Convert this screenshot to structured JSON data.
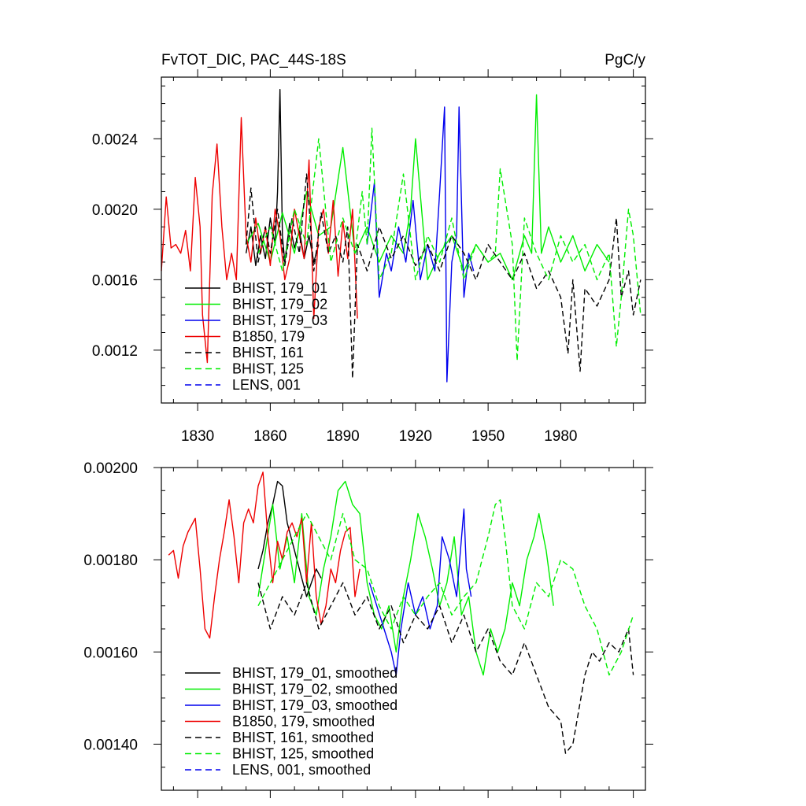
{
  "chart_data": [
    {
      "type": "line",
      "title": "FvTOT_DIC, PAC_44S-18S",
      "units": "PgC/y",
      "xlim": [
        1815,
        2015
      ],
      "ylim": [
        0.0009,
        0.00275
      ],
      "x_ticks": [
        1830,
        1860,
        1890,
        1920,
        1950,
        1980
      ],
      "x_tick_labels": [
        "1830",
        "1860",
        "1890",
        "1920",
        "1950",
        "1980"
      ],
      "y_ticks": [
        0.0012,
        0.0016,
        0.002,
        0.0024
      ],
      "y_tick_labels": [
        "0.0012",
        "0.0016",
        "0.0020",
        "0.0024"
      ],
      "legend_position": "lower-left",
      "colors": {
        "black": "#000000",
        "green": "#00ee00",
        "blue": "#0000ee",
        "red": "#ee0000"
      },
      "series": [
        {
          "name": "BHIST, 179_01",
          "color": "#000000",
          "dash": "solid",
          "x": [
            1850,
            1852,
            1854,
            1856,
            1858,
            1860,
            1862,
            1863,
            1864,
            1865,
            1866,
            1868,
            1870,
            1872,
            1874,
            1876,
            1878,
            1880
          ],
          "y": [
            0.00175,
            0.0019,
            0.00168,
            0.00185,
            0.00172,
            0.00195,
            0.0018,
            0.0021,
            0.00268,
            0.00185,
            0.0017,
            0.00192,
            0.00178,
            0.00188,
            0.00172,
            0.00185,
            0.0017,
            0.0018
          ]
        },
        {
          "name": "BHIST, 179_02",
          "color": "#00ee00",
          "dash": "solid",
          "x": [
            1850,
            1855,
            1860,
            1865,
            1870,
            1875,
            1880,
            1885,
            1890,
            1895,
            1900,
            1905,
            1910,
            1915,
            1918,
            1920,
            1925,
            1930,
            1935,
            1940,
            1945,
            1950,
            1955,
            1960,
            1965,
            1968,
            1970,
            1972,
            1975,
            1980,
            1985,
            1990,
            1995,
            2000
          ],
          "y": [
            0.0018,
            0.00192,
            0.0017,
            0.00198,
            0.00175,
            0.0021,
            0.00185,
            0.0019,
            0.00235,
            0.00175,
            0.0019,
            0.0017,
            0.00185,
            0.00175,
            0.002,
            0.0024,
            0.0016,
            0.00175,
            0.00185,
            0.00165,
            0.0018,
            0.0017,
            0.00175,
            0.0016,
            0.00185,
            0.00175,
            0.00265,
            0.00175,
            0.0019,
            0.0017,
            0.00185,
            0.00165,
            0.0018,
            0.0017
          ]
        },
        {
          "name": "BHIST, 179_03",
          "color": "#0000ee",
          "dash": "solid",
          "x": [
            1900,
            1903,
            1905,
            1908,
            1910,
            1913,
            1916,
            1919,
            1922,
            1925,
            1928,
            1930,
            1932,
            1933,
            1935,
            1937,
            1938,
            1940,
            1942,
            1944
          ],
          "y": [
            0.0018,
            0.00215,
            0.0015,
            0.00175,
            0.00165,
            0.0019,
            0.0017,
            0.00205,
            0.0016,
            0.0018,
            0.00165,
            0.0021,
            0.00258,
            0.00102,
            0.0017,
            0.00185,
            0.00258,
            0.0015,
            0.00175,
            0.00165
          ]
        },
        {
          "name": "B1850, 179",
          "color": "#ee0000",
          "dash": "solid",
          "x": [
            1815,
            1817,
            1819,
            1821,
            1823,
            1825,
            1827,
            1829,
            1831,
            1832,
            1834,
            1836,
            1838,
            1840,
            1842,
            1844,
            1846,
            1848,
            1850,
            1852,
            1854,
            1856,
            1858,
            1860,
            1862,
            1864,
            1866,
            1868,
            1870,
            1872,
            1874,
            1876,
            1878,
            1880,
            1882,
            1884,
            1886,
            1888,
            1890,
            1892,
            1894,
            1896
          ],
          "y": [
            0.00165,
            0.00207,
            0.00178,
            0.0018,
            0.00175,
            0.00188,
            0.00165,
            0.00218,
            0.0019,
            0.0014,
            0.00113,
            0.00208,
            0.00237,
            0.0019,
            0.0016,
            0.00175,
            0.0016,
            0.00252,
            0.00185,
            0.0017,
            0.00195,
            0.00175,
            0.0019,
            0.00168,
            0.002,
            0.00185,
            0.0016,
            0.00172,
            0.002,
            0.00185,
            0.00172,
            0.00228,
            0.00138,
            0.0019,
            0.002,
            0.00175,
            0.00205,
            0.00162,
            0.00193,
            0.00172,
            0.002,
            0.00138
          ]
        },
        {
          "name": "BHIST, 161",
          "color": "#000000",
          "dash": "dashed",
          "x": [
            1850,
            1852,
            1855,
            1858,
            1860,
            1863,
            1866,
            1869,
            1872,
            1875,
            1878,
            1881,
            1884,
            1887,
            1890,
            1892,
            1894,
            1896,
            1900,
            1905,
            1910,
            1915,
            1920,
            1925,
            1930,
            1935,
            1940,
            1945,
            1950,
            1955,
            1960,
            1965,
            1970,
            1975,
            1980,
            1983,
            1985,
            1988,
            1990,
            1995,
            2000,
            2003,
            2005,
            2008,
            2010,
            2013
          ],
          "y": [
            0.0018,
            0.00212,
            0.0017,
            0.0019,
            0.00175,
            0.002,
            0.00168,
            0.00195,
            0.00175,
            0.0022,
            0.00165,
            0.00198,
            0.00175,
            0.00185,
            0.0017,
            0.0019,
            0.00104,
            0.0018,
            0.00165,
            0.0019,
            0.00172,
            0.00185,
            0.00168,
            0.0018,
            0.00165,
            0.00185,
            0.00175,
            0.0016,
            0.0018,
            0.0017,
            0.0016,
            0.00175,
            0.00155,
            0.00165,
            0.0015,
            0.00118,
            0.0016,
            0.00108,
            0.00155,
            0.00145,
            0.0016,
            0.00195,
            0.0015,
            0.00165,
            0.0014,
            0.0016
          ]
        },
        {
          "name": "BHIST, 125",
          "color": "#00ee00",
          "dash": "dashed",
          "x": [
            1855,
            1860,
            1865,
            1870,
            1875,
            1880,
            1885,
            1890,
            1895,
            1898,
            1900,
            1902,
            1905,
            1910,
            1915,
            1920,
            1925,
            1930,
            1935,
            1940,
            1945,
            1950,
            1953,
            1955,
            1960,
            1962,
            1965,
            1970,
            1975,
            1980,
            1985,
            1990,
            1995,
            2000,
            2003,
            2005,
            2008,
            2010,
            2013
          ],
          "y": [
            0.00175,
            0.0019,
            0.00165,
            0.002,
            0.0018,
            0.0024,
            0.0017,
            0.00195,
            0.00175,
            0.0021,
            0.0018,
            0.00246,
            0.0016,
            0.00175,
            0.0022,
            0.0016,
            0.00185,
            0.0017,
            0.00195,
            0.0016,
            0.0018,
            0.0017,
            0.00175,
            0.00223,
            0.0018,
            0.00114,
            0.00195,
            0.00175,
            0.0016,
            0.00185,
            0.0017,
            0.0018,
            0.0016,
            0.00175,
            0.00122,
            0.0015,
            0.002,
            0.00185,
            0.0014
          ]
        },
        {
          "name": "LENS, 001",
          "color": "#0000ee",
          "dash": "dashed",
          "x": [],
          "y": []
        }
      ]
    },
    {
      "type": "line",
      "xlim": [
        1815,
        2015
      ],
      "ylim": [
        0.0013,
        0.002
      ],
      "y_ticks": [
        0.0014,
        0.0016,
        0.0018,
        0.002
      ],
      "y_tick_labels": [
        "0.00140",
        "0.00160",
        "0.00180",
        "0.00200"
      ],
      "legend_position": "lower-left",
      "series": [
        {
          "name": "BHIST, 179_01, smoothed",
          "color": "#000000",
          "dash": "solid",
          "x": [
            1855,
            1857,
            1859,
            1861,
            1863,
            1865,
            1867,
            1869,
            1871,
            1873,
            1875,
            1877,
            1879,
            1881
          ],
          "y": [
            0.00178,
            0.00182,
            0.00188,
            0.00192,
            0.00197,
            0.00196,
            0.00188,
            0.00184,
            0.0018,
            0.00176,
            0.00172,
            0.00175,
            0.00178,
            0.00176
          ]
        },
        {
          "name": "BHIST, 179_02, smoothed",
          "color": "#00ee00",
          "dash": "solid",
          "x": [
            1855,
            1858,
            1861,
            1864,
            1867,
            1870,
            1873,
            1876,
            1879,
            1882,
            1885,
            1888,
            1891,
            1894,
            1897,
            1900,
            1903,
            1906,
            1909,
            1912,
            1915,
            1918,
            1921,
            1924,
            1927,
            1930,
            1933,
            1936,
            1939,
            1942,
            1945,
            1948,
            1951,
            1954,
            1957,
            1960,
            1963,
            1966,
            1969,
            1971,
            1974,
            1977
          ],
          "y": [
            0.00172,
            0.00182,
            0.00192,
            0.00178,
            0.00185,
            0.00175,
            0.0019,
            0.00172,
            0.00168,
            0.00178,
            0.00185,
            0.00195,
            0.00197,
            0.00192,
            0.0019,
            0.00175,
            0.00168,
            0.00165,
            0.0017,
            0.0016,
            0.00172,
            0.0018,
            0.0019,
            0.00185,
            0.00178,
            0.0017,
            0.00175,
            0.00185,
            0.00168,
            0.00172,
            0.0016,
            0.00155,
            0.00165,
            0.0016,
            0.00165,
            0.00175,
            0.0017,
            0.0018,
            0.00185,
            0.0019,
            0.00182,
            0.0017
          ]
        },
        {
          "name": "BHIST, 179_03, smoothed",
          "color": "#0000ee",
          "dash": "solid",
          "x": [
            1901,
            1904,
            1907,
            1910,
            1912,
            1914,
            1917,
            1920,
            1923,
            1926,
            1929,
            1931,
            1934,
            1937,
            1940,
            1941,
            1943
          ],
          "y": [
            0.00175,
            0.0017,
            0.00165,
            0.0016,
            0.00155,
            0.00165,
            0.00175,
            0.00168,
            0.00172,
            0.00165,
            0.0017,
            0.00185,
            0.0018,
            0.00172,
            0.00191,
            0.00178,
            0.00172
          ]
        },
        {
          "name": "B1850, 179, smoothed",
          "color": "#ee0000",
          "dash": "solid",
          "x": [
            1818,
            1820,
            1822,
            1824,
            1826,
            1829,
            1831,
            1833,
            1835,
            1837,
            1839,
            1841,
            1843,
            1845,
            1847,
            1849,
            1851,
            1853,
            1855,
            1857,
            1859,
            1861,
            1863,
            1865,
            1867,
            1869,
            1871,
            1873,
            1875,
            1877,
            1879,
            1881,
            1883,
            1885,
            1887,
            1889,
            1891,
            1893,
            1895,
            1897
          ],
          "y": [
            0.00181,
            0.00182,
            0.00176,
            0.00183,
            0.00186,
            0.00189,
            0.00178,
            0.00165,
            0.00163,
            0.00172,
            0.0018,
            0.00186,
            0.00193,
            0.00185,
            0.00175,
            0.00188,
            0.00191,
            0.00188,
            0.00196,
            0.00199,
            0.00185,
            0.00175,
            0.00184,
            0.0018,
            0.00186,
            0.00188,
            0.00185,
            0.00189,
            0.00175,
            0.00188,
            0.00172,
            0.00166,
            0.0017,
            0.00178,
            0.00175,
            0.00182,
            0.00186,
            0.00187,
            0.00172,
            0.00178
          ]
        },
        {
          "name": "BHIST, 161, smoothed",
          "color": "#000000",
          "dash": "dashed",
          "x": [
            1855,
            1860,
            1865,
            1870,
            1875,
            1880,
            1885,
            1890,
            1895,
            1900,
            1905,
            1910,
            1915,
            1920,
            1925,
            1930,
            1935,
            1940,
            1945,
            1950,
            1955,
            1960,
            1965,
            1970,
            1975,
            1980,
            1982,
            1985,
            1990,
            1993,
            1996,
            2000,
            2004,
            2008,
            2010
          ],
          "y": [
            0.00175,
            0.00165,
            0.00172,
            0.00168,
            0.00175,
            0.00165,
            0.0017,
            0.00175,
            0.00168,
            0.00172,
            0.00165,
            0.0017,
            0.00162,
            0.00168,
            0.00165,
            0.0017,
            0.00162,
            0.00168,
            0.0016,
            0.00165,
            0.00158,
            0.00155,
            0.00162,
            0.00155,
            0.00148,
            0.00145,
            0.00138,
            0.0014,
            0.00155,
            0.0016,
            0.00158,
            0.00162,
            0.0016,
            0.00165,
            0.00155
          ]
        },
        {
          "name": "BHIST, 125, smoothed",
          "color": "#00ee00",
          "dash": "dashed",
          "x": [
            1855,
            1860,
            1865,
            1870,
            1875,
            1880,
            1885,
            1890,
            1895,
            1900,
            1905,
            1910,
            1915,
            1920,
            1925,
            1930,
            1935,
            1940,
            1945,
            1950,
            1953,
            1955,
            1957,
            1960,
            1965,
            1970,
            1975,
            1980,
            1985,
            1990,
            1995,
            2000,
            2005,
            2010
          ],
          "y": [
            0.0017,
            0.00175,
            0.0018,
            0.00185,
            0.0019,
            0.00185,
            0.0018,
            0.0019,
            0.0018,
            0.00178,
            0.0017,
            0.00165,
            0.00172,
            0.00168,
            0.00172,
            0.00175,
            0.00168,
            0.00172,
            0.00175,
            0.00185,
            0.00192,
            0.00193,
            0.00185,
            0.0017,
            0.00165,
            0.00175,
            0.00172,
            0.0018,
            0.00178,
            0.0017,
            0.00165,
            0.00155,
            0.0016,
            0.00168
          ]
        },
        {
          "name": "LENS, 001, smoothed",
          "color": "#0000ee",
          "dash": "dashed",
          "x": [],
          "y": []
        }
      ]
    }
  ]
}
